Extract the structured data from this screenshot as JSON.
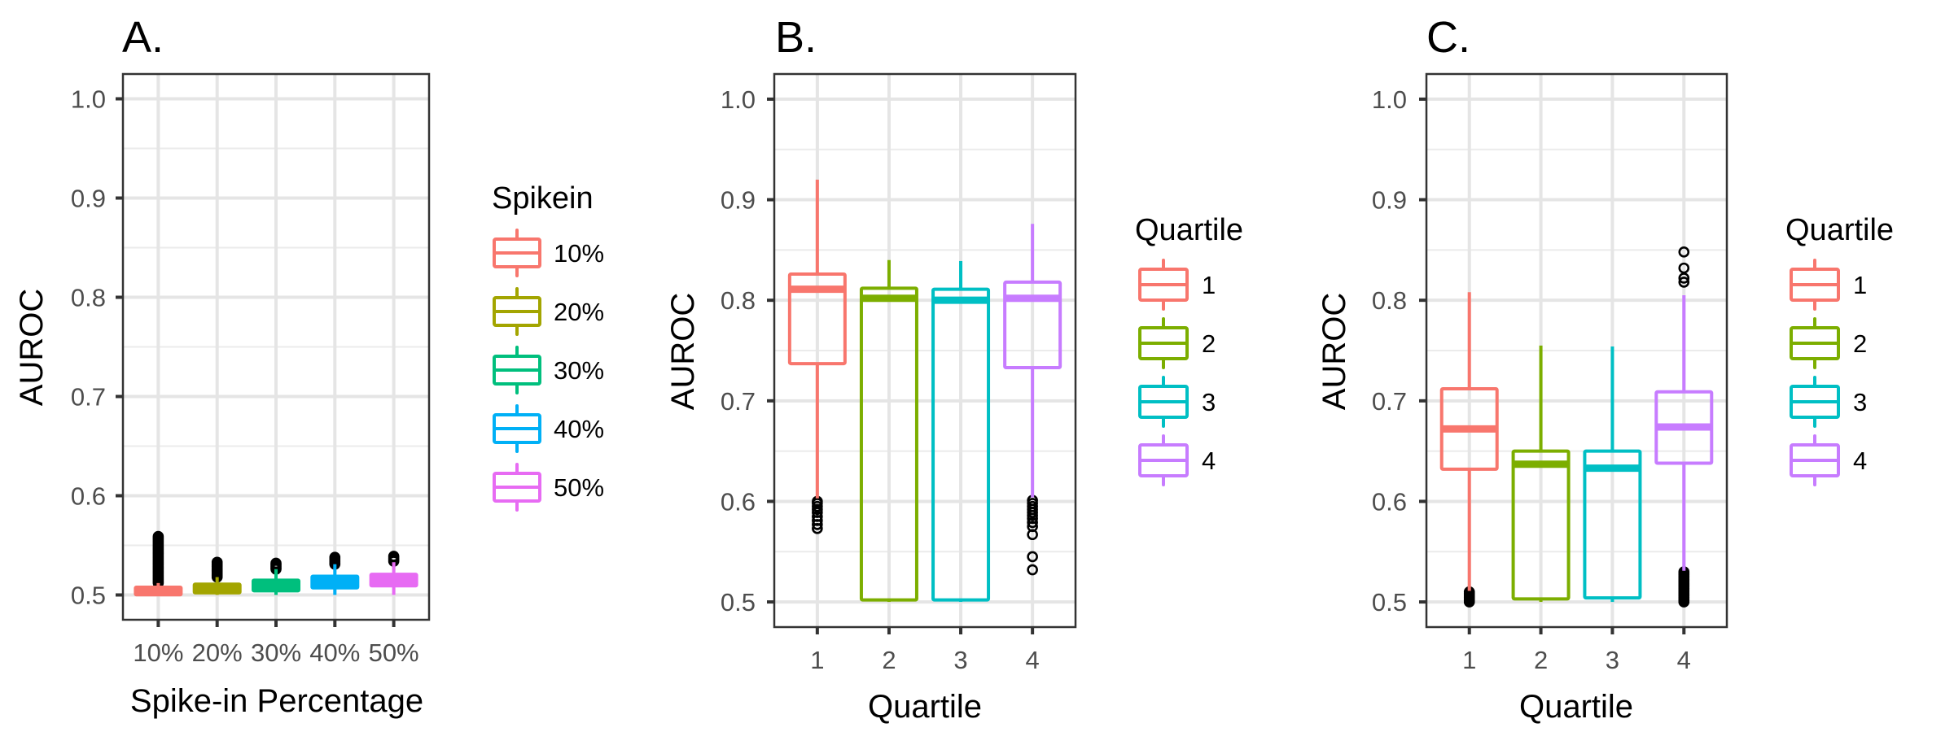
{
  "chart_data": [
    {
      "type": "box",
      "panel_label": "A.",
      "title": "",
      "xlabel": "Spike-in Percentage",
      "ylabel": "AUROC",
      "ylim": [
        0.475,
        1.025
      ],
      "yticks": [
        0.5,
        0.6,
        0.7,
        0.8,
        0.9,
        1.0
      ],
      "ytick_labels": [
        "0.5",
        "0.6",
        "0.7",
        "0.8",
        "0.9",
        "1.0"
      ],
      "grid": true,
      "categories": [
        "10%",
        "20%",
        "30%",
        "40%",
        "50%"
      ],
      "box_style": "filled",
      "legend": {
        "title": "Spikein",
        "placement": "right",
        "entries": [
          "10%",
          "20%",
          "30%",
          "40%",
          "50%"
        ]
      },
      "series": [
        {
          "name": "10%",
          "color": "#F8766D",
          "lower_whisker": 0.5,
          "q1": 0.501,
          "median": 0.504,
          "q3": 0.507,
          "upper_whisker": 0.512,
          "outliers_range": [
            0.512,
            0.559
          ]
        },
        {
          "name": "20%",
          "color": "#A3A500",
          "lower_whisker": 0.5,
          "q1": 0.503,
          "median": 0.507,
          "q3": 0.51,
          "upper_whisker": 0.518,
          "outliers_range": [
            0.518,
            0.533
          ]
        },
        {
          "name": "30%",
          "color": "#00BF7D",
          "lower_whisker": 0.5,
          "q1": 0.505,
          "median": 0.51,
          "q3": 0.514,
          "upper_whisker": 0.526,
          "outliers_range": [
            0.526,
            0.532
          ]
        },
        {
          "name": "40%",
          "color": "#00B0F6",
          "lower_whisker": 0.5,
          "q1": 0.508,
          "median": 0.513,
          "q3": 0.518,
          "upper_whisker": 0.531,
          "outliers_range": [
            0.531,
            0.538
          ]
        },
        {
          "name": "50%",
          "color": "#E76BF3",
          "lower_whisker": 0.5,
          "q1": 0.51,
          "median": 0.515,
          "q3": 0.52,
          "upper_whisker": 0.533,
          "outliers_range": [
            0.534,
            0.539
          ]
        }
      ]
    },
    {
      "type": "box",
      "panel_label": "B.",
      "title": "",
      "xlabel": "Quartile",
      "ylabel": "AUROC",
      "ylim": [
        0.475,
        1.025
      ],
      "yticks": [
        0.5,
        0.6,
        0.7,
        0.8,
        0.9,
        1.0
      ],
      "ytick_labels": [
        "0.5",
        "0.6",
        "0.7",
        "0.8",
        "0.9",
        "1.0"
      ],
      "grid": true,
      "categories": [
        "1",
        "2",
        "3",
        "4"
      ],
      "box_style": "outline",
      "legend": {
        "title": "Quartile",
        "placement": "right",
        "entries": [
          "1",
          "2",
          "3",
          "4"
        ]
      },
      "series": [
        {
          "name": "1",
          "color": "#F8766D",
          "lower_whisker": 0.603,
          "q1": 0.737,
          "median": 0.811,
          "q3": 0.826,
          "upper_whisker": 0.92,
          "outliers": [
            0.6,
            0.598,
            0.595,
            0.592,
            0.589,
            0.585,
            0.581,
            0.577,
            0.573
          ]
        },
        {
          "name": "2",
          "color": "#7CAE00",
          "lower_whisker": 0.5,
          "q1": 0.502,
          "median": 0.802,
          "q3": 0.812,
          "upper_whisker": 0.84,
          "outliers": []
        },
        {
          "name": "3",
          "color": "#00BFC4",
          "lower_whisker": 0.5,
          "q1": 0.502,
          "median": 0.8,
          "q3": 0.811,
          "upper_whisker": 0.839,
          "outliers": []
        },
        {
          "name": "4",
          "color": "#C77CFF",
          "lower_whisker": 0.604,
          "q1": 0.733,
          "median": 0.802,
          "q3": 0.818,
          "upper_whisker": 0.876,
          "outliers": [
            0.601,
            0.598,
            0.595,
            0.592,
            0.589,
            0.586,
            0.583,
            0.579,
            0.575,
            0.567,
            0.545,
            0.532
          ]
        }
      ]
    },
    {
      "type": "box",
      "panel_label": "C.",
      "title": "",
      "xlabel": "Quartile",
      "ylabel": "AUROC",
      "ylim": [
        0.475,
        1.025
      ],
      "yticks": [
        0.5,
        0.6,
        0.7,
        0.8,
        0.9,
        1.0
      ],
      "ytick_labels": [
        "0.5",
        "0.6",
        "0.7",
        "0.8",
        "0.9",
        "1.0"
      ],
      "grid": true,
      "categories": [
        "1",
        "2",
        "3",
        "4"
      ],
      "box_style": "outline",
      "legend": {
        "title": "Quartile",
        "placement": "right",
        "entries": [
          "1",
          "2",
          "3",
          "4"
        ]
      },
      "series": [
        {
          "name": "1",
          "color": "#F8766D",
          "lower_whisker": 0.511,
          "q1": 0.632,
          "median": 0.672,
          "q3": 0.712,
          "upper_whisker": 0.808,
          "outliers_range": [
            0.5,
            0.51
          ]
        },
        {
          "name": "2",
          "color": "#7CAE00",
          "lower_whisker": 0.5,
          "q1": 0.503,
          "median": 0.637,
          "q3": 0.65,
          "upper_whisker": 0.755,
          "outliers": []
        },
        {
          "name": "3",
          "color": "#00BFC4",
          "lower_whisker": 0.5,
          "q1": 0.504,
          "median": 0.633,
          "q3": 0.65,
          "upper_whisker": 0.754,
          "outliers": []
        },
        {
          "name": "4",
          "color": "#C77CFF",
          "lower_whisker": 0.531,
          "q1": 0.638,
          "median": 0.674,
          "q3": 0.709,
          "upper_whisker": 0.805,
          "outliers": [
            0.848,
            0.832,
            0.822,
            0.818
          ],
          "outliers_range": [
            0.5,
            0.53
          ]
        }
      ]
    }
  ]
}
